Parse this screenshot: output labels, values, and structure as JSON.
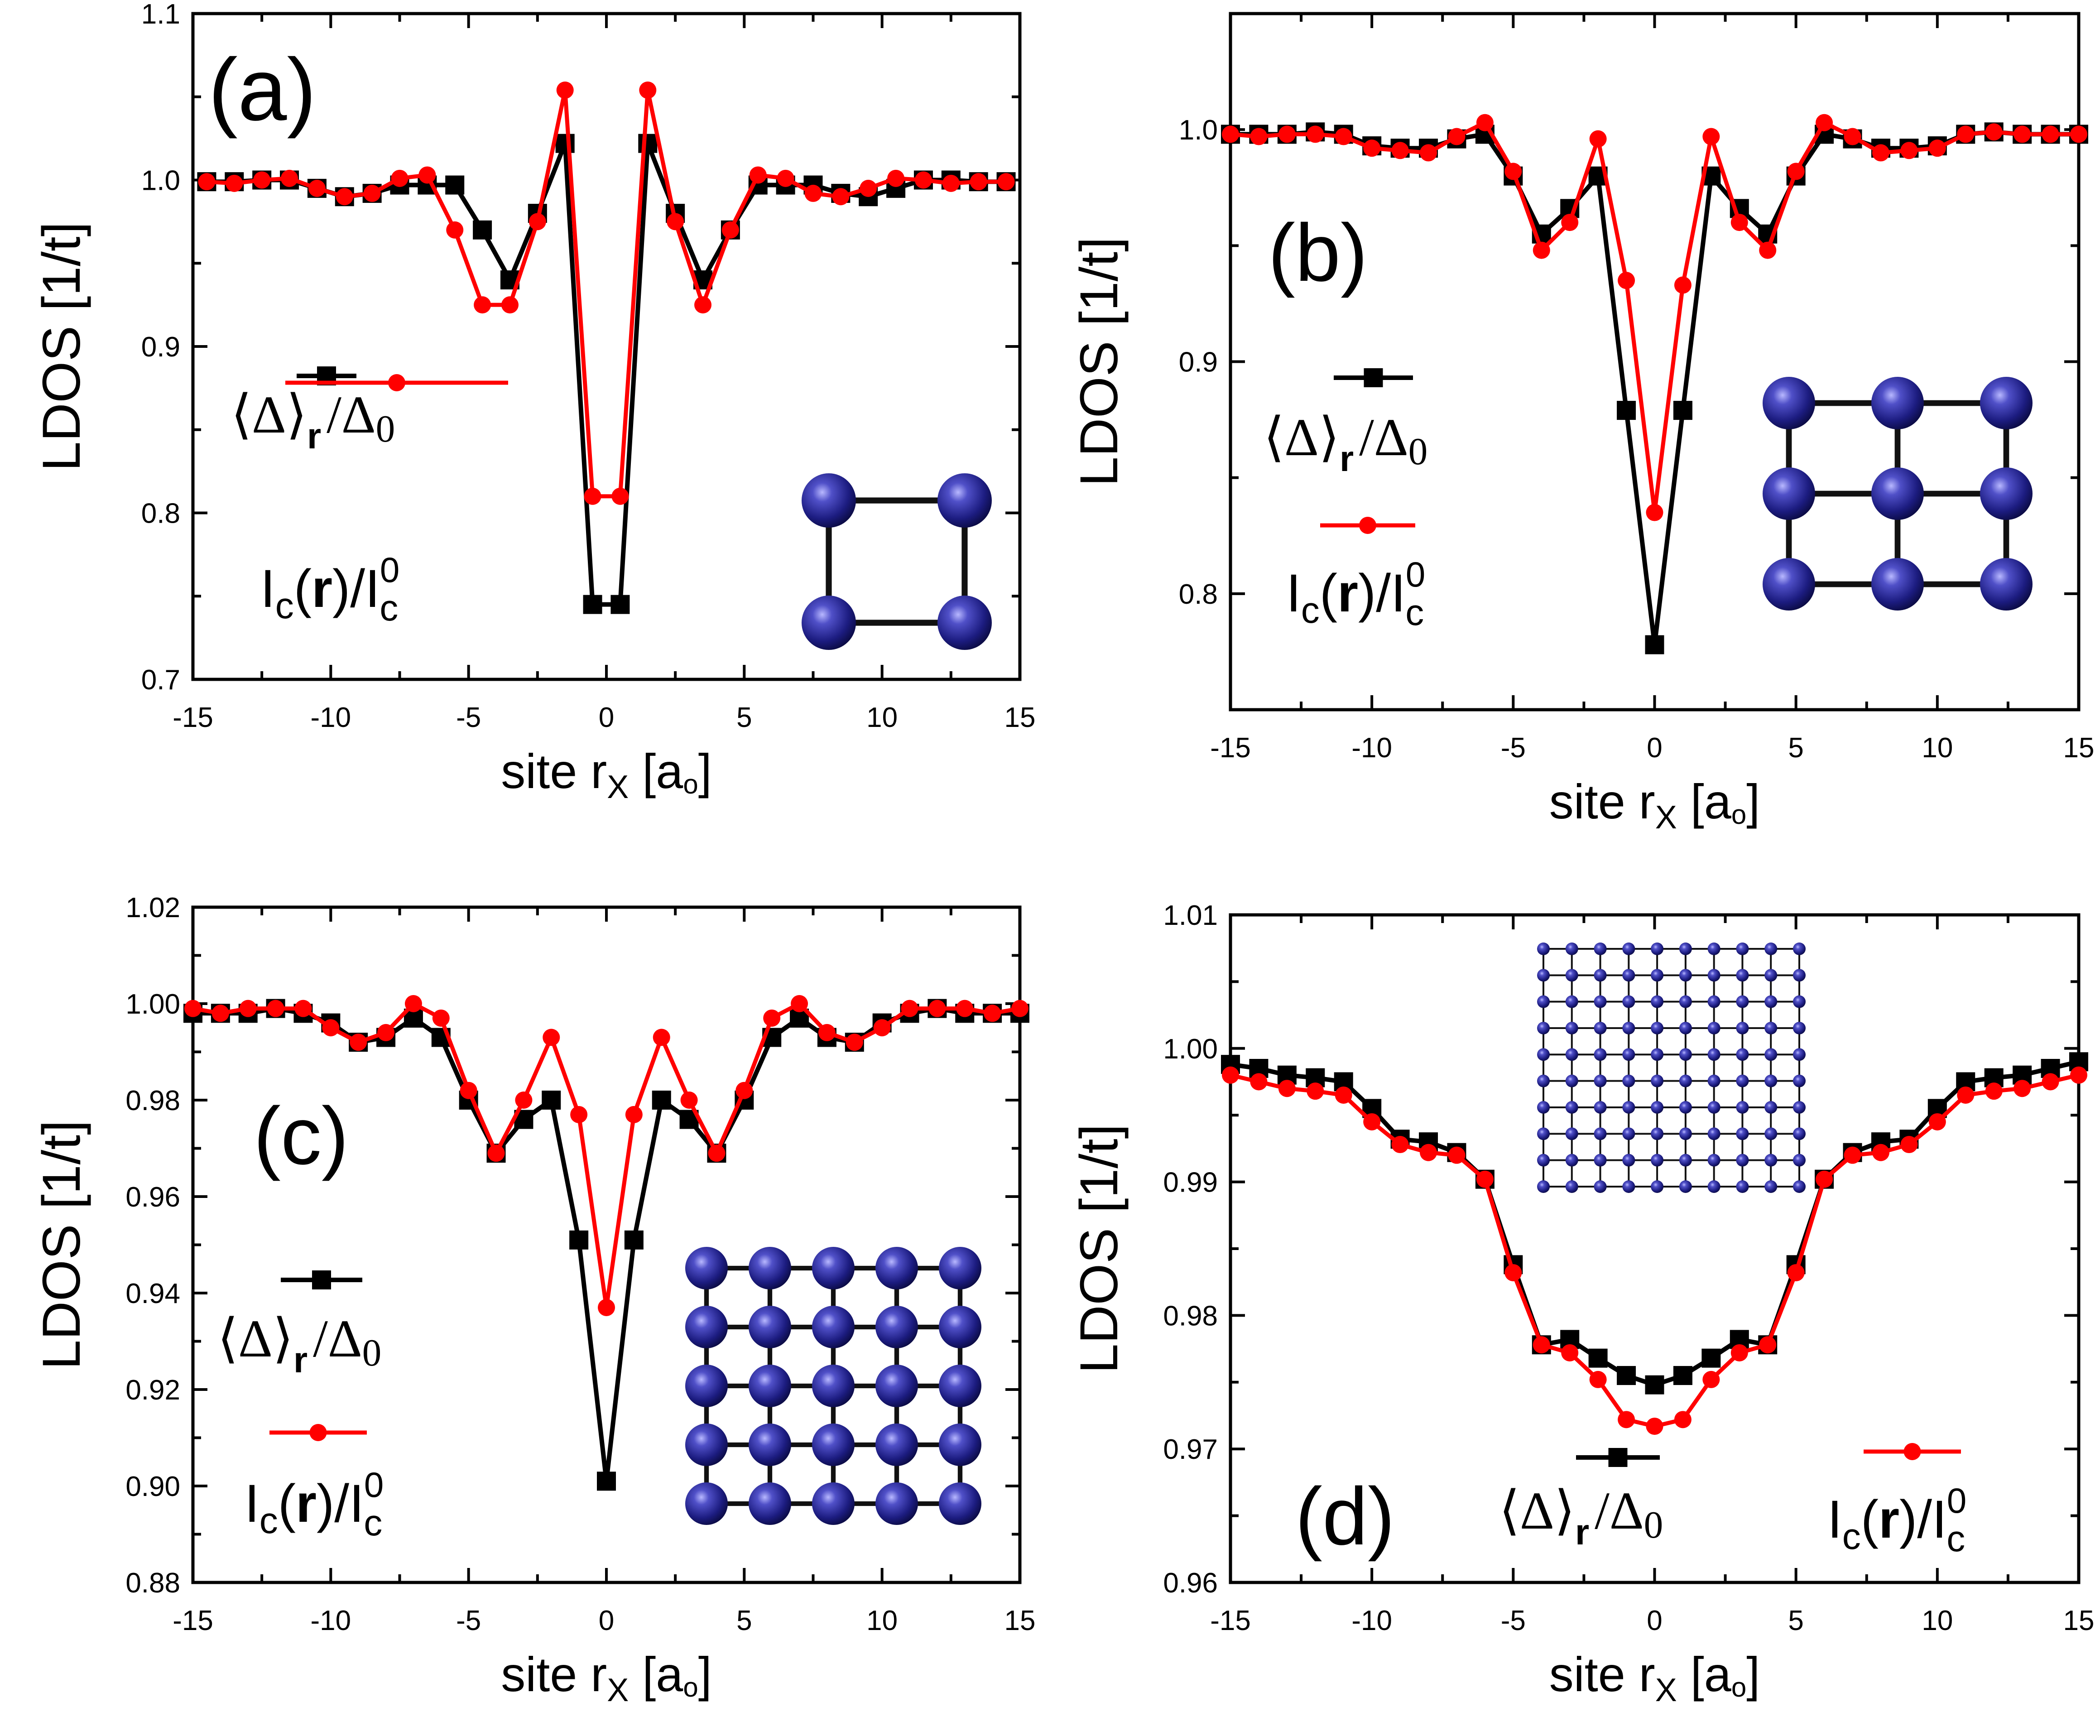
{
  "colors": {
    "black_series": "#000000",
    "red_series": "#ff0000",
    "atom": "#1a1a7a",
    "bond": "#000000"
  },
  "charts": [
    {
      "panel_label": "(a)",
      "chart_data": {
        "type": "line",
        "xlabel": "site r",
        "xlabel_sub": "X",
        "xlabel_unit": "[a",
        "xlabel_unit_sub": "o",
        "xlabel_close": "]",
        "ylabel": "LDOS  [1/t]",
        "xlim": [
          -15,
          15
        ],
        "ylim": [
          0.7,
          1.1
        ],
        "xticks": [
          -15,
          -10,
          -5,
          0,
          5,
          10,
          15
        ],
        "xtick_labels": [
          "-15",
          "-10",
          "-5",
          "0",
          "5",
          "10",
          "15"
        ],
        "yticks": [
          0.7,
          0.8,
          0.9,
          1.0,
          1.1
        ],
        "ytick_labels": [
          "0.7",
          "0.8",
          "0.9",
          "1.0",
          "1.1"
        ],
        "grid": false,
        "series": [
          {
            "legend_label": "⟨Δ⟩_r / Δ0",
            "color": "#000000",
            "marker": "square",
            "x": [
              -14.5,
              -13.5,
              -12.5,
              -11.5,
              -10.5,
              -9.5,
              -8.5,
              -7.5,
              -6.5,
              -5.5,
              -4.5,
              -3.5,
              -2.5,
              -1.5,
              -0.5,
              0.5,
              1.5,
              2.5,
              3.5,
              4.5,
              5.5,
              6.5,
              7.5,
              8.5,
              9.5,
              10.5,
              11.5,
              12.5,
              13.5,
              14.5
            ],
            "y": [
              0.999,
              0.999,
              1.0,
              1.0,
              0.995,
              0.99,
              0.992,
              0.997,
              0.997,
              0.997,
              0.97,
              0.94,
              0.98,
              1.022,
              0.745,
              0.745,
              1.022,
              0.98,
              0.94,
              0.97,
              0.997,
              0.997,
              0.997,
              0.992,
              0.99,
              0.995,
              1.0,
              1.0,
              0.999,
              0.999
            ]
          },
          {
            "legend_label": "I_c(r) / I_c^0",
            "color": "#ff0000",
            "marker": "circle",
            "x": [
              -14.5,
              -13.5,
              -12.5,
              -11.5,
              -10.5,
              -9.5,
              -8.5,
              -7.5,
              -6.5,
              -5.5,
              -4.5,
              -3.5,
              -2.5,
              -1.5,
              -0.5,
              0.5,
              1.5,
              2.5,
              3.5,
              4.5,
              5.5,
              6.5,
              7.5,
              8.5,
              9.5,
              10.5,
              11.5,
              12.5,
              13.5,
              14.5
            ],
            "y": [
              0.999,
              0.998,
              1.0,
              1.001,
              0.995,
              0.99,
              0.992,
              1.001,
              1.003,
              0.97,
              0.925,
              0.925,
              0.975,
              1.054,
              0.81,
              0.81,
              1.054,
              0.975,
              0.925,
              0.97,
              1.003,
              1.001,
              0.992,
              0.99,
              0.995,
              1.001,
              1.0,
              0.998,
              0.999,
              0.999
            ]
          }
        ]
      },
      "legend": {
        "black_main": "⟨Δ⟩",
        "black_sub": "r",
        "black_tail": "/Δ",
        "black_tail_sub": "0",
        "red_main": "I",
        "red_sub1": "c",
        "red_mid": "(",
        "red_bold": "r",
        "red_after": ")/I",
        "red_sup": "0",
        "red_sub2": "c"
      },
      "inset": {
        "lattice": "2x2"
      }
    },
    {
      "panel_label": "(b)",
      "chart_data": {
        "type": "line",
        "xlabel": "site r",
        "xlabel_sub": "X",
        "xlabel_unit": "[a",
        "xlabel_unit_sub": "o",
        "xlabel_close": "]",
        "ylabel": "LDOS  [1/t]",
        "xlim": [
          -15,
          15
        ],
        "ylim": [
          0.75,
          1.05
        ],
        "xticks": [
          -15,
          -10,
          -5,
          0,
          5,
          10,
          15
        ],
        "xtick_labels": [
          "-15",
          "-10",
          "-5",
          "0",
          "5",
          "10",
          "15"
        ],
        "yticks": [
          0.8,
          0.9,
          1.0
        ],
        "ytick_labels": [
          "0.8",
          "0.9",
          "1.0"
        ],
        "grid": false,
        "series": [
          {
            "legend_label": "⟨Δ⟩_r / Δ0",
            "color": "#000000",
            "marker": "square",
            "x": [
              -15,
              -14,
              -13,
              -12,
              -11,
              -10,
              -9,
              -8,
              -7,
              -6,
              -5,
              -4,
              -3,
              -2,
              -1,
              0,
              1,
              2,
              3,
              4,
              5,
              6,
              7,
              8,
              9,
              10,
              11,
              12,
              13,
              14,
              15
            ],
            "y": [
              0.998,
              0.998,
              0.998,
              0.999,
              0.998,
              0.993,
              0.992,
              0.992,
              0.996,
              0.998,
              0.98,
              0.955,
              0.966,
              0.98,
              0.879,
              0.778,
              0.879,
              0.98,
              0.966,
              0.955,
              0.98,
              0.998,
              0.996,
              0.992,
              0.992,
              0.993,
              0.998,
              0.999,
              0.998,
              0.998,
              0.998
            ]
          },
          {
            "legend_label": "I_c(r) / I_c^0",
            "color": "#ff0000",
            "marker": "circle",
            "x": [
              -15,
              -14,
              -13,
              -12,
              -11,
              -10,
              -9,
              -8,
              -7,
              -6,
              -5,
              -4,
              -3,
              -2,
              -1,
              0,
              1,
              2,
              3,
              4,
              5,
              6,
              7,
              8,
              9,
              10,
              11,
              12,
              13,
              14,
              15
            ],
            "y": [
              0.998,
              0.997,
              0.998,
              0.998,
              0.997,
              0.992,
              0.991,
              0.99,
              0.997,
              1.003,
              0.982,
              0.948,
              0.96,
              0.996,
              0.935,
              0.835,
              0.933,
              0.997,
              0.96,
              0.948,
              0.982,
              1.003,
              0.997,
              0.99,
              0.991,
              0.992,
              0.998,
              0.999,
              0.998,
              0.998,
              0.998
            ]
          }
        ]
      },
      "legend": {
        "black_main": "⟨Δ⟩",
        "black_sub": "r",
        "black_tail": "/Δ",
        "black_tail_sub": "0",
        "red_main": "I",
        "red_sub1": "c",
        "red_mid": "(",
        "red_bold": "r",
        "red_after": ")/I",
        "red_sup": "0",
        "red_sub2": "c"
      },
      "inset": {
        "lattice": "3x3"
      }
    },
    {
      "panel_label": "(c)",
      "chart_data": {
        "type": "line",
        "xlabel": "site r",
        "xlabel_sub": "X",
        "xlabel_unit": "[a",
        "xlabel_unit_sub": "o",
        "xlabel_close": "]",
        "ylabel": "LDOS  [1/t]",
        "xlim": [
          -15,
          15
        ],
        "ylim": [
          0.88,
          1.02
        ],
        "xticks": [
          -15,
          -10,
          -5,
          0,
          5,
          10,
          15
        ],
        "xtick_labels": [
          "-15",
          "-10",
          "-5",
          "0",
          "5",
          "10",
          "15"
        ],
        "yticks": [
          0.88,
          0.9,
          0.92,
          0.94,
          0.96,
          0.98,
          1.0,
          1.02
        ],
        "ytick_labels": [
          "0.88",
          "0.90",
          "0.92",
          "0.94",
          "0.96",
          "0.98",
          "1.00",
          "1.02"
        ],
        "grid": false,
        "series": [
          {
            "legend_label": "⟨Δ⟩_r / Δ0",
            "color": "#000000",
            "marker": "square",
            "x": [
              -15,
              -14,
              -13,
              -12,
              -11,
              -10,
              -9,
              -8,
              -7,
              -6,
              -5,
              -4,
              -3,
              -2,
              -1,
              0,
              1,
              2,
              3,
              4,
              5,
              6,
              7,
              8,
              9,
              10,
              11,
              12,
              13,
              14,
              15
            ],
            "y": [
              0.998,
              0.998,
              0.998,
              0.999,
              0.998,
              0.996,
              0.992,
              0.993,
              0.997,
              0.993,
              0.98,
              0.969,
              0.976,
              0.98,
              0.951,
              0.901,
              0.951,
              0.98,
              0.976,
              0.969,
              0.98,
              0.993,
              0.997,
              0.993,
              0.992,
              0.996,
              0.998,
              0.999,
              0.998,
              0.998,
              0.998
            ]
          },
          {
            "legend_label": "I_c(r) / I_c^0",
            "color": "#ff0000",
            "marker": "circle",
            "x": [
              -15,
              -14,
              -13,
              -12,
              -11,
              -10,
              -9,
              -8,
              -7,
              -6,
              -5,
              -4,
              -3,
              -2,
              -1,
              0,
              1,
              2,
              3,
              4,
              5,
              6,
              7,
              8,
              9,
              10,
              11,
              12,
              13,
              14,
              15
            ],
            "y": [
              0.999,
              0.998,
              0.999,
              0.999,
              0.999,
              0.995,
              0.992,
              0.994,
              1.0,
              0.997,
              0.982,
              0.969,
              0.98,
              0.993,
              0.977,
              0.937,
              0.977,
              0.993,
              0.98,
              0.969,
              0.982,
              0.997,
              1.0,
              0.994,
              0.992,
              0.995,
              0.999,
              0.999,
              0.999,
              0.998,
              0.999
            ]
          }
        ]
      },
      "legend": {
        "black_main": "⟨Δ⟩",
        "black_sub": "r",
        "black_tail": "/Δ",
        "black_tail_sub": "0",
        "red_main": "I",
        "red_sub1": "c",
        "red_mid": "(",
        "red_bold": "r",
        "red_after": ")/I",
        "red_sup": "0",
        "red_sub2": "c"
      },
      "inset": {
        "lattice": "5x5"
      }
    },
    {
      "panel_label": "(d)",
      "chart_data": {
        "type": "line",
        "xlabel": "site r",
        "xlabel_sub": "X",
        "xlabel_unit": "[a",
        "xlabel_unit_sub": "o",
        "xlabel_close": "]",
        "ylabel": "LDOS  [1/t]",
        "xlim": [
          -15,
          15
        ],
        "ylim": [
          0.96,
          1.01
        ],
        "xticks": [
          -15,
          -10,
          -5,
          0,
          5,
          10,
          15
        ],
        "xtick_labels": [
          "-15",
          "-10",
          "-5",
          "0",
          "5",
          "10",
          "15"
        ],
        "yticks": [
          0.96,
          0.97,
          0.98,
          0.99,
          1.0,
          1.01
        ],
        "ytick_labels": [
          "0.96",
          "0.97",
          "0.98",
          "0.99",
          "1.00",
          "1.01"
        ],
        "grid": false,
        "series": [
          {
            "legend_label": "⟨Δ⟩_r / Δ0",
            "color": "#000000",
            "marker": "square",
            "x": [
              -15,
              -14,
              -13,
              -12,
              -11,
              -10,
              -9,
              -8,
              -7,
              -6,
              -5,
              -4,
              -3,
              -2,
              -1,
              0,
              1,
              2,
              3,
              4,
              5,
              6,
              7,
              8,
              9,
              10,
              11,
              12,
              13,
              14,
              15
            ],
            "y": [
              0.9988,
              0.9985,
              0.998,
              0.9978,
              0.9975,
              0.9955,
              0.9932,
              0.993,
              0.9922,
              0.9902,
              0.9838,
              0.9778,
              0.9782,
              0.9768,
              0.9755,
              0.9748,
              0.9755,
              0.9768,
              0.9782,
              0.9778,
              0.9838,
              0.9902,
              0.9922,
              0.993,
              0.9932,
              0.9955,
              0.9975,
              0.9978,
              0.998,
              0.9985,
              0.999
            ]
          },
          {
            "legend_label": "I_c(r) / I_c^0",
            "color": "#ff0000",
            "marker": "circle",
            "x": [
              -15,
              -14,
              -13,
              -12,
              -11,
              -10,
              -9,
              -8,
              -7,
              -6,
              -5,
              -4,
              -3,
              -2,
              -1,
              0,
              1,
              2,
              3,
              4,
              5,
              6,
              7,
              8,
              9,
              10,
              11,
              12,
              13,
              14,
              15
            ],
            "y": [
              0.998,
              0.9975,
              0.997,
              0.9968,
              0.9965,
              0.9945,
              0.9928,
              0.9922,
              0.992,
              0.9902,
              0.9832,
              0.9778,
              0.9772,
              0.9752,
              0.9722,
              0.9717,
              0.9722,
              0.9752,
              0.9772,
              0.9778,
              0.9832,
              0.9902,
              0.992,
              0.9922,
              0.9928,
              0.9945,
              0.9965,
              0.9968,
              0.997,
              0.9975,
              0.998
            ]
          }
        ]
      },
      "legend": {
        "black_main": "⟨Δ⟩",
        "black_sub": "r",
        "black_tail": "/Δ",
        "black_tail_sub": "0",
        "red_main": "I",
        "red_sub1": "c",
        "red_mid": "(",
        "red_bold": "r",
        "red_after": ")/I",
        "red_sup": "0",
        "red_sub2": "c"
      },
      "inset": {
        "lattice": "10x10"
      }
    }
  ]
}
